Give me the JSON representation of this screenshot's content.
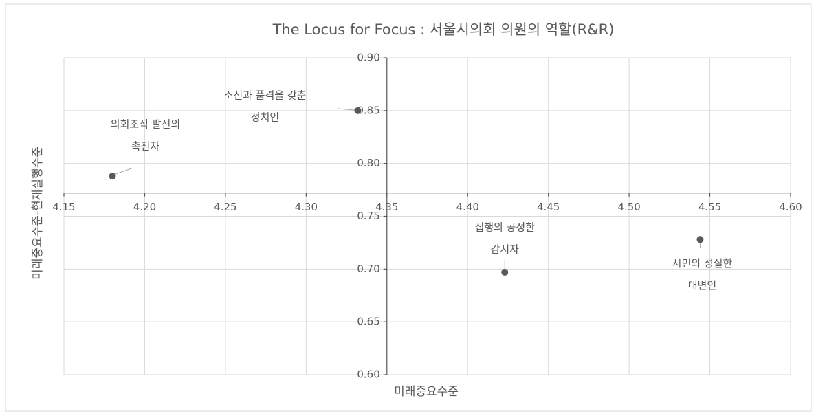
{
  "chart_data": {
    "type": "scatter",
    "title": "The Locus for Focus : 서울시의회 의원의 역할(R&R)",
    "xlabel": "미래중요수준",
    "ylabel": "미래중요수준-현재실행수준",
    "xlim": [
      4.15,
      4.6
    ],
    "ylim": [
      0.6,
      0.9
    ],
    "xticks": [
      4.15,
      {
        "value": 4.2,
        "label": "4.20"
      },
      4.25,
      {
        "value": 4.3,
        "label": "4.30"
      },
      4.35,
      {
        "value": 4.4,
        "label": "4.40"
      },
      4.45,
      {
        "value": 4.5,
        "label": "4.50"
      },
      4.55,
      {
        "value": 4.6,
        "label": "4.60"
      }
    ],
    "yticks": [
      {
        "value": 0.6,
        "label": "0.60"
      },
      0.65,
      {
        "value": 0.7,
        "label": "0.70"
      },
      0.75,
      {
        "value": 0.8,
        "label": "0.80"
      },
      0.85,
      {
        "value": 0.9,
        "label": "0.90"
      }
    ],
    "x_axis_crossing": 0.772,
    "y_axis_crossing": 4.35,
    "grid": true,
    "series": [
      {
        "color": "#595959",
        "x": [
          4.18,
          4.332,
          4.423,
          4.544
        ],
        "values": [
          0.788,
          0.85,
          0.697,
          0.728
        ],
        "labels": [
          [
            "의회조직 발전의",
            "촉진자"
          ],
          [
            "소신과 품격을 갖춘",
            "정치인"
          ],
          [
            "집행의 공정한",
            "감시자"
          ],
          [
            "시민의 성실한",
            "대변인"
          ]
        ]
      }
    ]
  }
}
